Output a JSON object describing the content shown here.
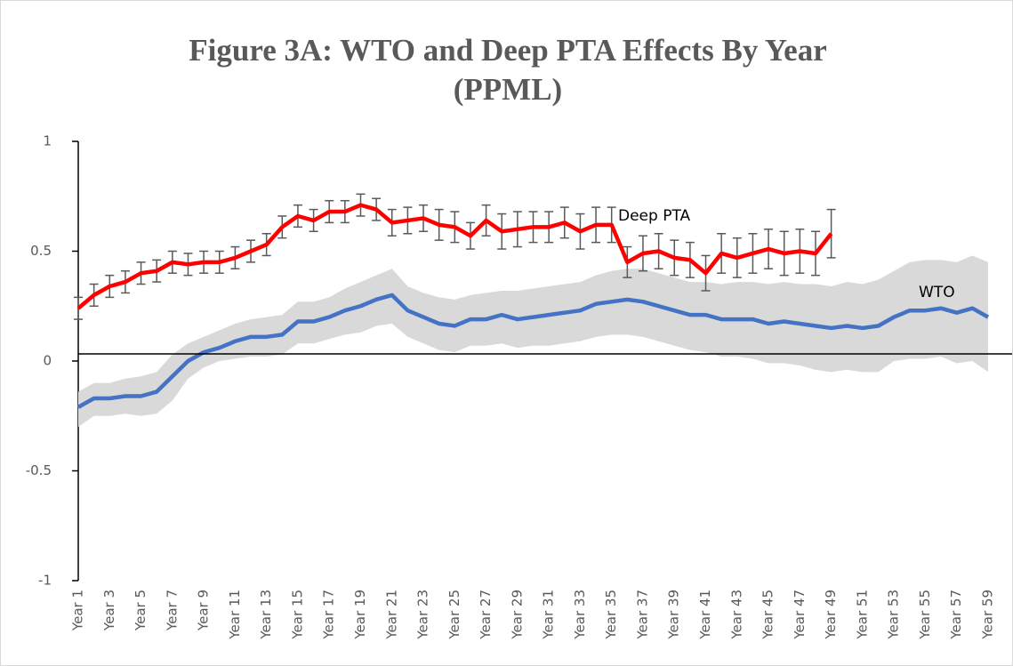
{
  "chart_data": {
    "type": "line",
    "title": "Figure 3A: WTO and Deep PTA Effects By Year (PPML)",
    "categories": [
      "Year 1",
      null,
      "Year 3",
      null,
      "Year 5",
      null,
      "Year 7",
      null,
      "Year 9",
      null,
      "Year 11",
      null,
      "Year 13",
      null,
      "Year 15",
      null,
      "Year 17",
      null,
      "Year 19",
      null,
      "Year 21",
      null,
      "Year 23",
      null,
      "Year 25",
      null,
      "Year 27",
      null,
      "Year 29",
      null,
      "Year 31",
      null,
      "Year 33",
      null,
      "Year 35",
      null,
      "Year 37",
      null,
      "Year 39",
      null,
      "Year 41",
      null,
      "Year 43",
      null,
      "Year 45",
      null,
      "Year 47",
      null,
      "Year 49",
      null,
      "Year 51",
      null,
      "Year 53",
      null,
      "Year 55",
      null,
      "Year 57",
      null,
      "Year 59"
    ],
    "ylim": [
      -1,
      1
    ],
    "yticks": [
      1,
      0.5,
      0,
      -0.5,
      -1
    ],
    "series": [
      {
        "name": "WTO",
        "color": "#4472c4",
        "band_color": "#d9d9d9",
        "values": [
          -0.21,
          -0.17,
          -0.17,
          -0.16,
          -0.16,
          -0.14,
          -0.07,
          0.0,
          0.04,
          0.06,
          0.09,
          0.11,
          0.11,
          0.12,
          0.18,
          0.18,
          0.2,
          0.23,
          0.25,
          0.28,
          0.3,
          0.23,
          0.2,
          0.17,
          0.16,
          0.19,
          0.19,
          0.21,
          0.19,
          0.2,
          0.21,
          0.22,
          0.23,
          0.26,
          0.27,
          0.28,
          0.27,
          0.25,
          0.23,
          0.21,
          0.21,
          0.19,
          0.19,
          0.19,
          0.17,
          0.18,
          0.17,
          0.16,
          0.15,
          0.16,
          0.15,
          0.16,
          0.2,
          0.23,
          0.23,
          0.24,
          0.22,
          0.24,
          0.2
        ],
        "upper": [
          -0.14,
          -0.1,
          -0.1,
          -0.08,
          -0.07,
          -0.05,
          0.03,
          0.08,
          0.11,
          0.14,
          0.17,
          0.19,
          0.2,
          0.21,
          0.27,
          0.27,
          0.29,
          0.33,
          0.36,
          0.39,
          0.42,
          0.34,
          0.31,
          0.29,
          0.28,
          0.3,
          0.31,
          0.32,
          0.32,
          0.33,
          0.34,
          0.35,
          0.36,
          0.39,
          0.41,
          0.42,
          0.42,
          0.4,
          0.38,
          0.36,
          0.36,
          0.35,
          0.36,
          0.36,
          0.35,
          0.36,
          0.35,
          0.35,
          0.34,
          0.36,
          0.35,
          0.37,
          0.41,
          0.45,
          0.46,
          0.46,
          0.45,
          0.48,
          0.45
        ],
        "lower": [
          -0.3,
          -0.25,
          -0.25,
          -0.24,
          -0.25,
          -0.24,
          -0.18,
          -0.08,
          -0.03,
          0.0,
          0.01,
          0.02,
          0.02,
          0.03,
          0.08,
          0.08,
          0.1,
          0.12,
          0.13,
          0.16,
          0.17,
          0.11,
          0.08,
          0.05,
          0.04,
          0.07,
          0.07,
          0.08,
          0.06,
          0.07,
          0.07,
          0.08,
          0.09,
          0.11,
          0.12,
          0.12,
          0.11,
          0.09,
          0.07,
          0.05,
          0.04,
          0.02,
          0.02,
          0.01,
          -0.01,
          -0.01,
          -0.02,
          -0.04,
          -0.05,
          -0.04,
          -0.05,
          -0.05,
          0.0,
          0.01,
          0.01,
          0.02,
          -0.01,
          0.0,
          -0.05
        ]
      },
      {
        "name": "Deep PTA",
        "color": "#ff0000",
        "error_color": "#595959",
        "values": [
          0.24,
          0.3,
          0.34,
          0.36,
          0.4,
          0.41,
          0.45,
          0.44,
          0.45,
          0.45,
          0.47,
          0.5,
          0.53,
          0.61,
          0.66,
          0.64,
          0.68,
          0.68,
          0.71,
          0.69,
          0.63,
          0.64,
          0.65,
          0.62,
          0.61,
          0.57,
          0.64,
          0.59,
          0.6,
          0.61,
          0.61,
          0.63,
          0.59,
          0.62,
          0.62,
          0.45,
          0.49,
          0.5,
          0.47,
          0.46,
          0.4,
          0.49,
          0.47,
          0.49,
          0.51,
          0.49,
          0.5,
          0.49,
          0.58,
          null,
          null,
          null,
          null,
          null,
          null,
          null,
          null,
          null,
          null
        ],
        "errors": [
          0.05,
          0.05,
          0.05,
          0.05,
          0.05,
          0.05,
          0.05,
          0.05,
          0.05,
          0.05,
          0.05,
          0.05,
          0.05,
          0.05,
          0.05,
          0.05,
          0.05,
          0.05,
          0.05,
          0.05,
          0.06,
          0.06,
          0.06,
          0.07,
          0.07,
          0.06,
          0.07,
          0.08,
          0.08,
          0.07,
          0.07,
          0.07,
          0.08,
          0.08,
          0.08,
          0.07,
          0.08,
          0.08,
          0.08,
          0.08,
          0.08,
          0.09,
          0.09,
          0.09,
          0.09,
          0.1,
          0.1,
          0.1,
          0.11,
          null,
          null,
          null,
          null,
          null,
          null,
          null,
          null,
          null,
          null
        ]
      }
    ]
  }
}
